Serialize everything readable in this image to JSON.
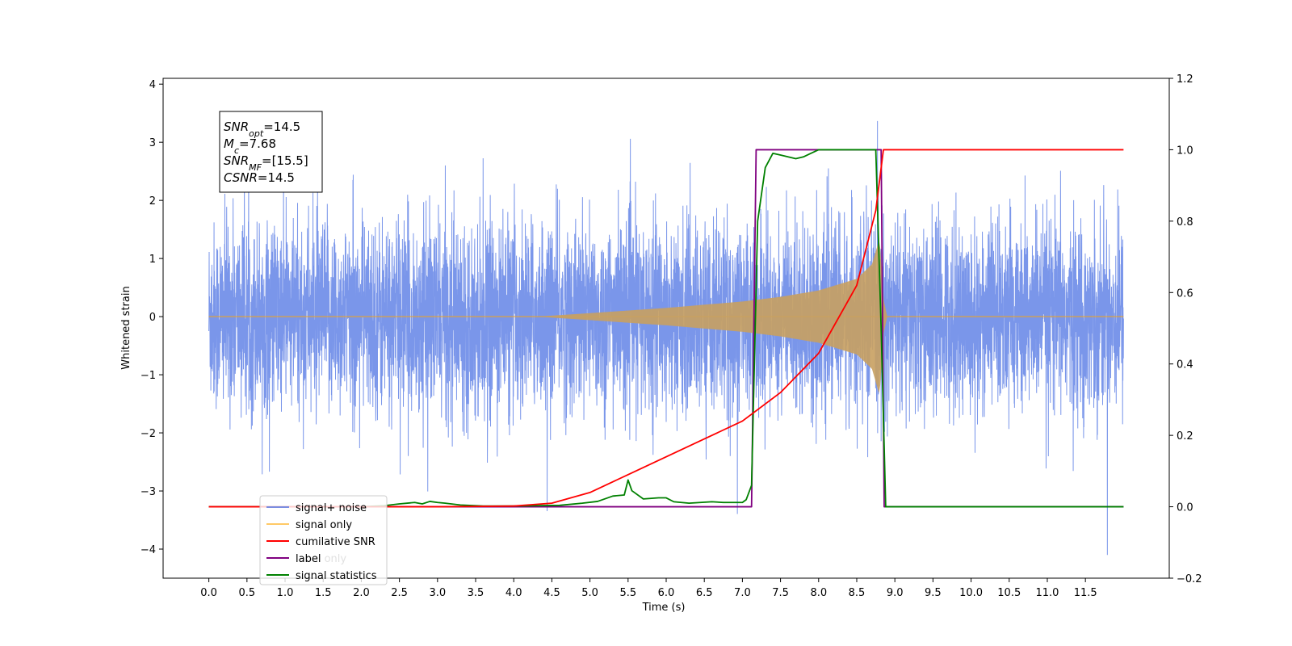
{
  "chart_data": {
    "type": "line",
    "xlabel": "Time (s)",
    "ylabel": "Whitened strain",
    "xlim": [
      -0.6,
      12.6
    ],
    "ylim": [
      -4.5,
      4.1
    ],
    "ylim_right": [
      -0.2,
      1.2
    ],
    "x_ticks": [
      "0.0",
      "0.5",
      "1.0",
      "1.5",
      "2.0",
      "2.5",
      "3.0",
      "3.5",
      "4.0",
      "4.5",
      "5.0",
      "5.5",
      "6.0",
      "6.5",
      "7.0",
      "7.5",
      "8.0",
      "8.5",
      "9.0",
      "9.5",
      "10.0",
      "10.5",
      "11.0",
      "11.5"
    ],
    "y_ticks_left": [
      "4",
      "3",
      "2",
      "1",
      "0",
      "−1",
      "−2",
      "−3",
      "−4"
    ],
    "y_ticks_right": [
      "1.2",
      "1.0",
      "0.8",
      "0.6",
      "0.4",
      "0.2",
      "0.0",
      "−0.2"
    ],
    "annotation": {
      "lines": [
        {
          "main": "SNR",
          "sub": "opt",
          "rest": "=14.5"
        },
        {
          "main": "M",
          "sub": "c",
          "rest": "=7.68"
        },
        {
          "main": "SNR",
          "sub": "MF",
          "rest": "=[15.5]"
        },
        {
          "main": "CSNR",
          "sub": "",
          "rest": "=14.5"
        }
      ]
    },
    "legend": {
      "location": "lower-left",
      "entries": [
        {
          "label": "signal+ noise",
          "color": "#4169e1"
        },
        {
          "label": "signal only",
          "color": "#ffa500"
        },
        {
          "label": "cumilative SNR",
          "color": "#ff0000"
        },
        {
          "label": "label",
          "color": "#800080"
        },
        {
          "label": "signal statistics",
          "color": "#008000"
        }
      ],
      "hidden_behind_legend": "label only"
    },
    "series": [
      {
        "name": "signal+ noise",
        "axis": "left",
        "color": "#4169e1",
        "x_range": [
          0.0,
          12.0
        ],
        "typical_amplitude": 1.7,
        "max": 3.7,
        "min": -4.1
      },
      {
        "name": "signal only",
        "axis": "left",
        "color": "#ffa500",
        "envelope": {
          "x": [
            4.3,
            5.0,
            6.0,
            7.0,
            7.5,
            8.0,
            8.5,
            8.7,
            8.8,
            8.85,
            8.9
          ],
          "amp": [
            0.0,
            0.06,
            0.15,
            0.26,
            0.34,
            0.45,
            0.65,
            0.9,
            1.35,
            0.3,
            0.0
          ]
        }
      },
      {
        "name": "cumilative SNR",
        "axis": "right",
        "color": "#ff0000",
        "x": [
          0,
          3.0,
          4.0,
          4.5,
          5.0,
          5.5,
          6.0,
          6.5,
          7.0,
          7.5,
          8.0,
          8.5,
          8.75,
          8.85,
          12.0
        ],
        "y": [
          0,
          0,
          0.002,
          0.01,
          0.04,
          0.09,
          0.14,
          0.19,
          0.24,
          0.32,
          0.43,
          0.62,
          0.83,
          1.0,
          1.0
        ]
      },
      {
        "name": "label",
        "axis": "right",
        "color": "#800080",
        "x": [
          0,
          7.12,
          7.18,
          8.82,
          8.86,
          12.0
        ],
        "y": [
          0,
          0,
          1,
          1,
          0,
          0
        ]
      },
      {
        "name": "signal statistics",
        "axis": "right",
        "color": "#008000",
        "x": [
          0,
          2.0,
          2.3,
          2.5,
          2.7,
          2.8,
          2.9,
          3.0,
          3.1,
          3.3,
          3.6,
          4.0,
          4.6,
          4.9,
          5.1,
          5.3,
          5.45,
          5.5,
          5.55,
          5.7,
          5.9,
          6.0,
          6.1,
          6.3,
          6.6,
          6.75,
          7.0,
          7.05,
          7.12,
          7.2,
          7.3,
          7.4,
          7.5,
          7.6,
          7.7,
          7.8,
          7.9,
          8.0,
          8.2,
          8.5,
          8.75,
          8.82,
          8.88,
          12.0
        ],
        "y": [
          0,
          0,
          0.003,
          0.008,
          0.012,
          0.008,
          0.015,
          0.012,
          0.01,
          0.005,
          0.002,
          0.002,
          0.004,
          0.01,
          0.015,
          0.03,
          0.033,
          0.075,
          0.045,
          0.022,
          0.025,
          0.025,
          0.014,
          0.01,
          0.014,
          0.012,
          0.012,
          0.02,
          0.06,
          0.8,
          0.95,
          0.99,
          0.985,
          0.98,
          0.975,
          0.98,
          0.99,
          1.0,
          1.0,
          1.0,
          1.0,
          0.5,
          0.0,
          0.0
        ]
      }
    ]
  }
}
